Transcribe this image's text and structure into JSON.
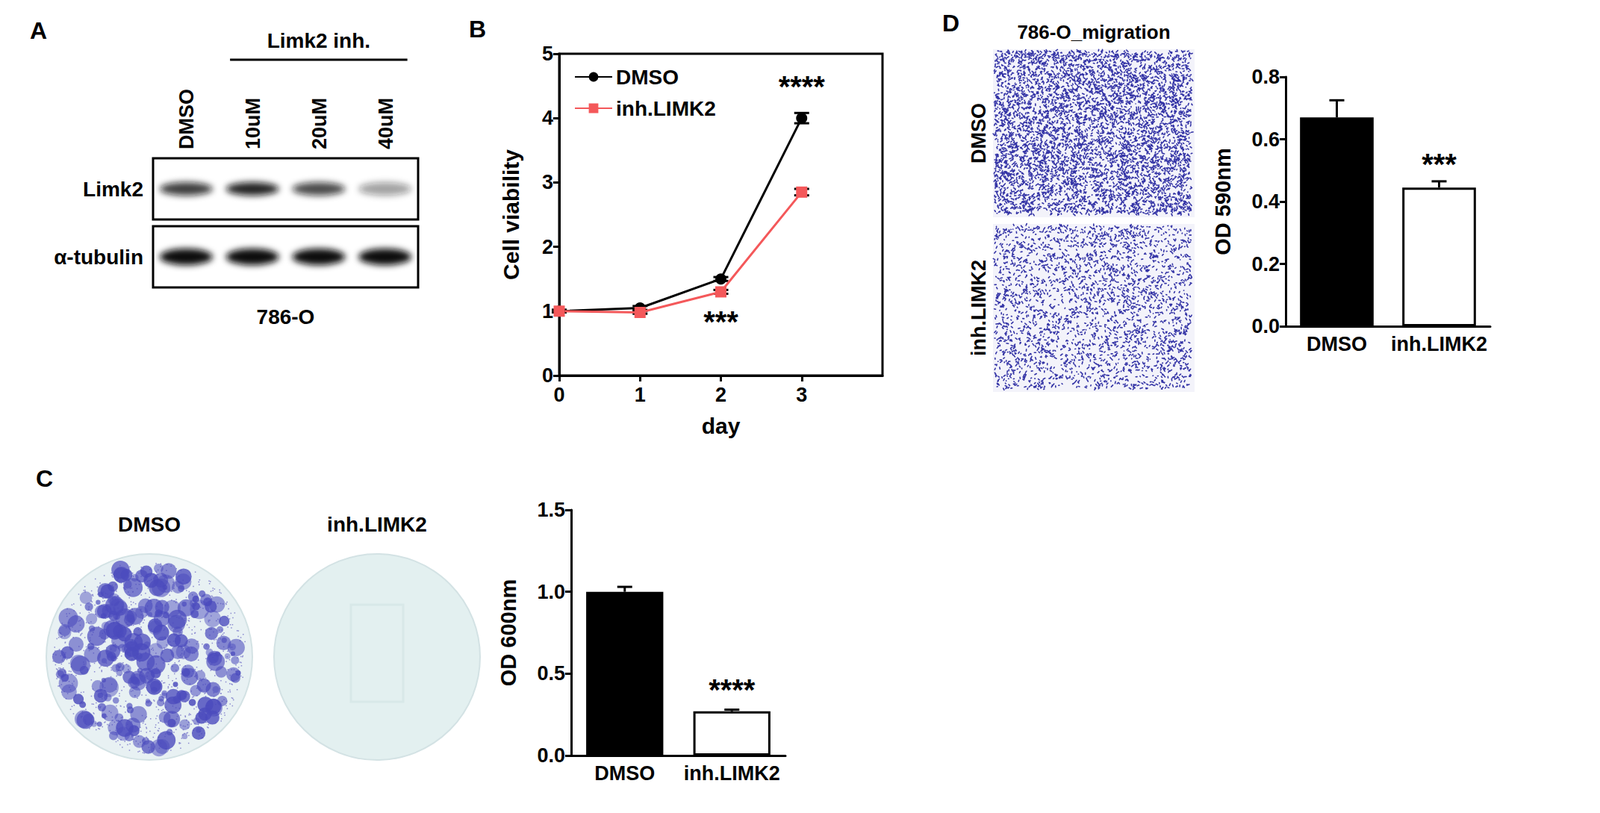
{
  "blot": {
    "panel": "A",
    "header": "Limk2 inh.",
    "lanes": [
      "DMSO",
      "10uM",
      "20uM",
      "40uM"
    ],
    "rows": [
      {
        "label": "Limk2",
        "band_intensity": [
          0.8,
          0.9,
          0.75,
          0.4
        ]
      },
      {
        "label": "α-tubulin",
        "band_intensity": [
          1,
          1,
          1,
          1
        ]
      }
    ],
    "caption": "786-O"
  },
  "colony_assay": {
    "panel": "C",
    "images": [
      "DMSO",
      "inh.LIMK2"
    ]
  },
  "migration_assay": {
    "panel": "D",
    "title": "786-O_migration",
    "images": [
      "DMSO",
      "inh.LIMK2"
    ]
  },
  "chart_data": [
    {
      "panel": "B",
      "type": "line",
      "x": [
        0,
        1,
        2,
        3
      ],
      "xlim": [
        0,
        4
      ],
      "xticks": [
        0,
        1,
        2,
        3
      ],
      "ylim": [
        0,
        5
      ],
      "yticks": [
        0,
        1,
        2,
        3,
        4,
        5
      ],
      "x_label": "day",
      "y_label": "Cell viability",
      "grid": false,
      "legend": "upper left",
      "series": [
        {
          "name": "DMSO",
          "color": "#000000",
          "marker": "circle",
          "values": [
            1,
            1.05,
            1.5,
            4.0
          ],
          "errors": [
            0.02,
            0.03,
            0.03,
            0.08
          ]
        },
        {
          "name": "inh.LIMK2",
          "color": "#f4585a",
          "marker": "square",
          "values": [
            1,
            0.98,
            1.3,
            2.85
          ],
          "errors": [
            0.02,
            0.02,
            0.03,
            0.05
          ]
        }
      ],
      "annotations": [
        {
          "text": "***",
          "x": 2,
          "y": 0.84
        },
        {
          "text": "****",
          "x": 3,
          "y": 4.49
        }
      ]
    },
    {
      "panel": "C",
      "type": "bar",
      "categories": [
        "DMSO",
        "inh.LIMK2"
      ],
      "values": [
        1.0,
        0.27
      ],
      "errors": [
        0.03,
        0.01
      ],
      "colors": [
        "#000000",
        "#ffffff"
      ],
      "ylim": [
        0,
        1.5
      ],
      "yticks": [
        {
          "value": 0,
          "label": "0.0"
        },
        {
          "value": 0.5,
          "label": "0.5"
        },
        {
          "value": 1,
          "label": "1.0"
        },
        {
          "value": 1.5,
          "label": "1.5"
        }
      ],
      "y_label": "OD 600nm",
      "grid": false,
      "annotations": [
        {
          "text": "****",
          "x": "inh.LIMK2",
          "y": 0.4
        }
      ]
    },
    {
      "panel": "D",
      "type": "bar",
      "categories": [
        "DMSO",
        "inh.LIMK2"
      ],
      "values": [
        0.67,
        0.445
      ],
      "errors": [
        0.055,
        0.02
      ],
      "colors": [
        "#000000",
        "#ffffff"
      ],
      "ylim": [
        0,
        0.8
      ],
      "yticks": [
        {
          "value": 0,
          "label": "0.0"
        },
        {
          "value": 0.2,
          "label": "0.2"
        },
        {
          "value": 0.4,
          "label": "0.4"
        },
        {
          "value": 0.6,
          "label": "0.6"
        },
        {
          "value": 0.8,
          "label": "0.8"
        }
      ],
      "y_label": "OD 590nm",
      "grid": false,
      "annotations": [
        {
          "text": "***",
          "x": "inh.LIMK2",
          "y": 0.52
        }
      ]
    }
  ]
}
